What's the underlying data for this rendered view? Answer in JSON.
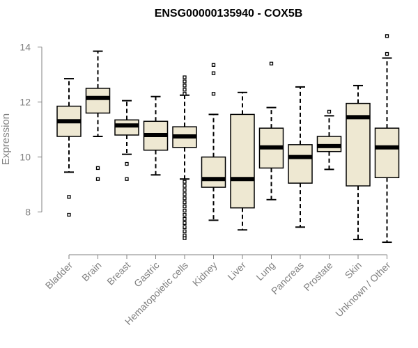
{
  "chart_data": {
    "type": "boxplot",
    "title": "ENSG00000135940 - COX5B",
    "xlabel": "",
    "ylabel": "Expression",
    "ylim": [
      6.8,
      14.7
    ],
    "yticks": [
      8,
      10,
      12,
      14
    ],
    "box_fill": "#EEE8D2",
    "median_color": "#000000",
    "categories": [
      "Bladder",
      "Brain",
      "Breast",
      "Gastric",
      "Hematopoietic cells",
      "Kidney",
      "Liver",
      "Lung",
      "Pancreas",
      "Prostate",
      "Skin",
      "Unknown / Other"
    ],
    "boxes": [
      {
        "name": "Bladder",
        "whisker_low": 9.45,
        "q1": 10.75,
        "median": 11.3,
        "q3": 11.85,
        "whisker_high": 12.85,
        "outliers": [
          8.55,
          7.9
        ]
      },
      {
        "name": "Brain",
        "whisker_low": 10.75,
        "q1": 11.6,
        "median": 12.15,
        "q3": 12.5,
        "whisker_high": 13.85,
        "outliers": [
          9.6,
          9.2
        ]
      },
      {
        "name": "Breast",
        "whisker_low": 10.1,
        "q1": 10.8,
        "median": 11.15,
        "q3": 11.35,
        "whisker_high": 12.05,
        "outliers": [
          9.75,
          9.2
        ]
      },
      {
        "name": "Gastric",
        "whisker_low": 9.35,
        "q1": 10.25,
        "median": 10.8,
        "q3": 11.3,
        "whisker_high": 12.2,
        "outliers": []
      },
      {
        "name": "Hematopoietic cells",
        "whisker_low": 9.2,
        "q1": 10.35,
        "median": 10.75,
        "q3": 11.1,
        "whisker_high": 12.25,
        "outliers": [
          12.9,
          12.75,
          12.6,
          12.45,
          12.3,
          9.1,
          8.95,
          8.8,
          8.65,
          8.5,
          8.35,
          8.2,
          8.05,
          7.9,
          7.75,
          7.6,
          7.45,
          7.3,
          7.15,
          7.05
        ]
      },
      {
        "name": "Kidney",
        "whisker_low": 7.7,
        "q1": 8.9,
        "median": 9.2,
        "q3": 10.0,
        "whisker_high": 11.55,
        "outliers": [
          13.35,
          13.05,
          12.3
        ]
      },
      {
        "name": "Liver",
        "whisker_low": 7.35,
        "q1": 8.15,
        "median": 9.2,
        "q3": 11.55,
        "whisker_high": 12.35,
        "outliers": []
      },
      {
        "name": "Lung",
        "whisker_low": 8.45,
        "q1": 9.6,
        "median": 10.35,
        "q3": 11.05,
        "whisker_high": 11.8,
        "outliers": [
          13.4
        ]
      },
      {
        "name": "Pancreas",
        "whisker_low": 7.45,
        "q1": 9.05,
        "median": 10.0,
        "q3": 10.45,
        "whisker_high": 12.55,
        "outliers": []
      },
      {
        "name": "Prostate",
        "whisker_low": 9.55,
        "q1": 10.2,
        "median": 10.4,
        "q3": 10.75,
        "whisker_high": 11.5,
        "outliers": [
          11.65
        ]
      },
      {
        "name": "Skin",
        "whisker_low": 7.0,
        "q1": 8.95,
        "median": 11.45,
        "q3": 11.95,
        "whisker_high": 12.6,
        "outliers": []
      },
      {
        "name": "Unknown / Other",
        "whisker_low": 6.9,
        "q1": 9.25,
        "median": 10.35,
        "q3": 11.05,
        "whisker_high": 13.6,
        "outliers": [
          14.4,
          13.75
        ]
      }
    ]
  }
}
